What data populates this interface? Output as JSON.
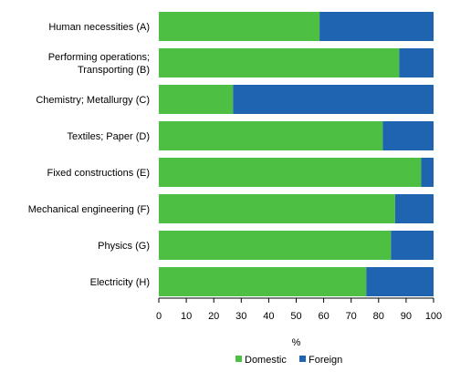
{
  "chart_data": {
    "type": "bar",
    "orientation": "horizontal",
    "stacked": true,
    "categories": [
      "Human necessities (A)",
      "Performing operations;\nTransporting (B)",
      "Chemistry; Metallurgy  (C)",
      "Textiles; Paper (D)",
      "Fixed constructions (E)",
      "Mechanical engineering (F)",
      "Physics (G)",
      "Electricity (H)"
    ],
    "series": [
      {
        "name": "Domestic",
        "color": "#4dbf42",
        "values": [
          58.5,
          87.5,
          27,
          81.5,
          95.5,
          86,
          84.5,
          75.5
        ]
      },
      {
        "name": "Foreign",
        "color": "#1f64b0",
        "values": [
          41.5,
          12.5,
          73,
          18.5,
          4.5,
          14,
          15.5,
          24.5
        ]
      }
    ],
    "xlabel": "%",
    "ylabel": "",
    "xlim": [
      0,
      100
    ],
    "xticks": [
      "0",
      "10",
      "20",
      "30",
      "40",
      "50",
      "60",
      "70",
      "80",
      "90",
      "100"
    ],
    "grid": false,
    "legend": {
      "position": "bottom",
      "entries": [
        "Domestic",
        "Foreign"
      ]
    }
  }
}
